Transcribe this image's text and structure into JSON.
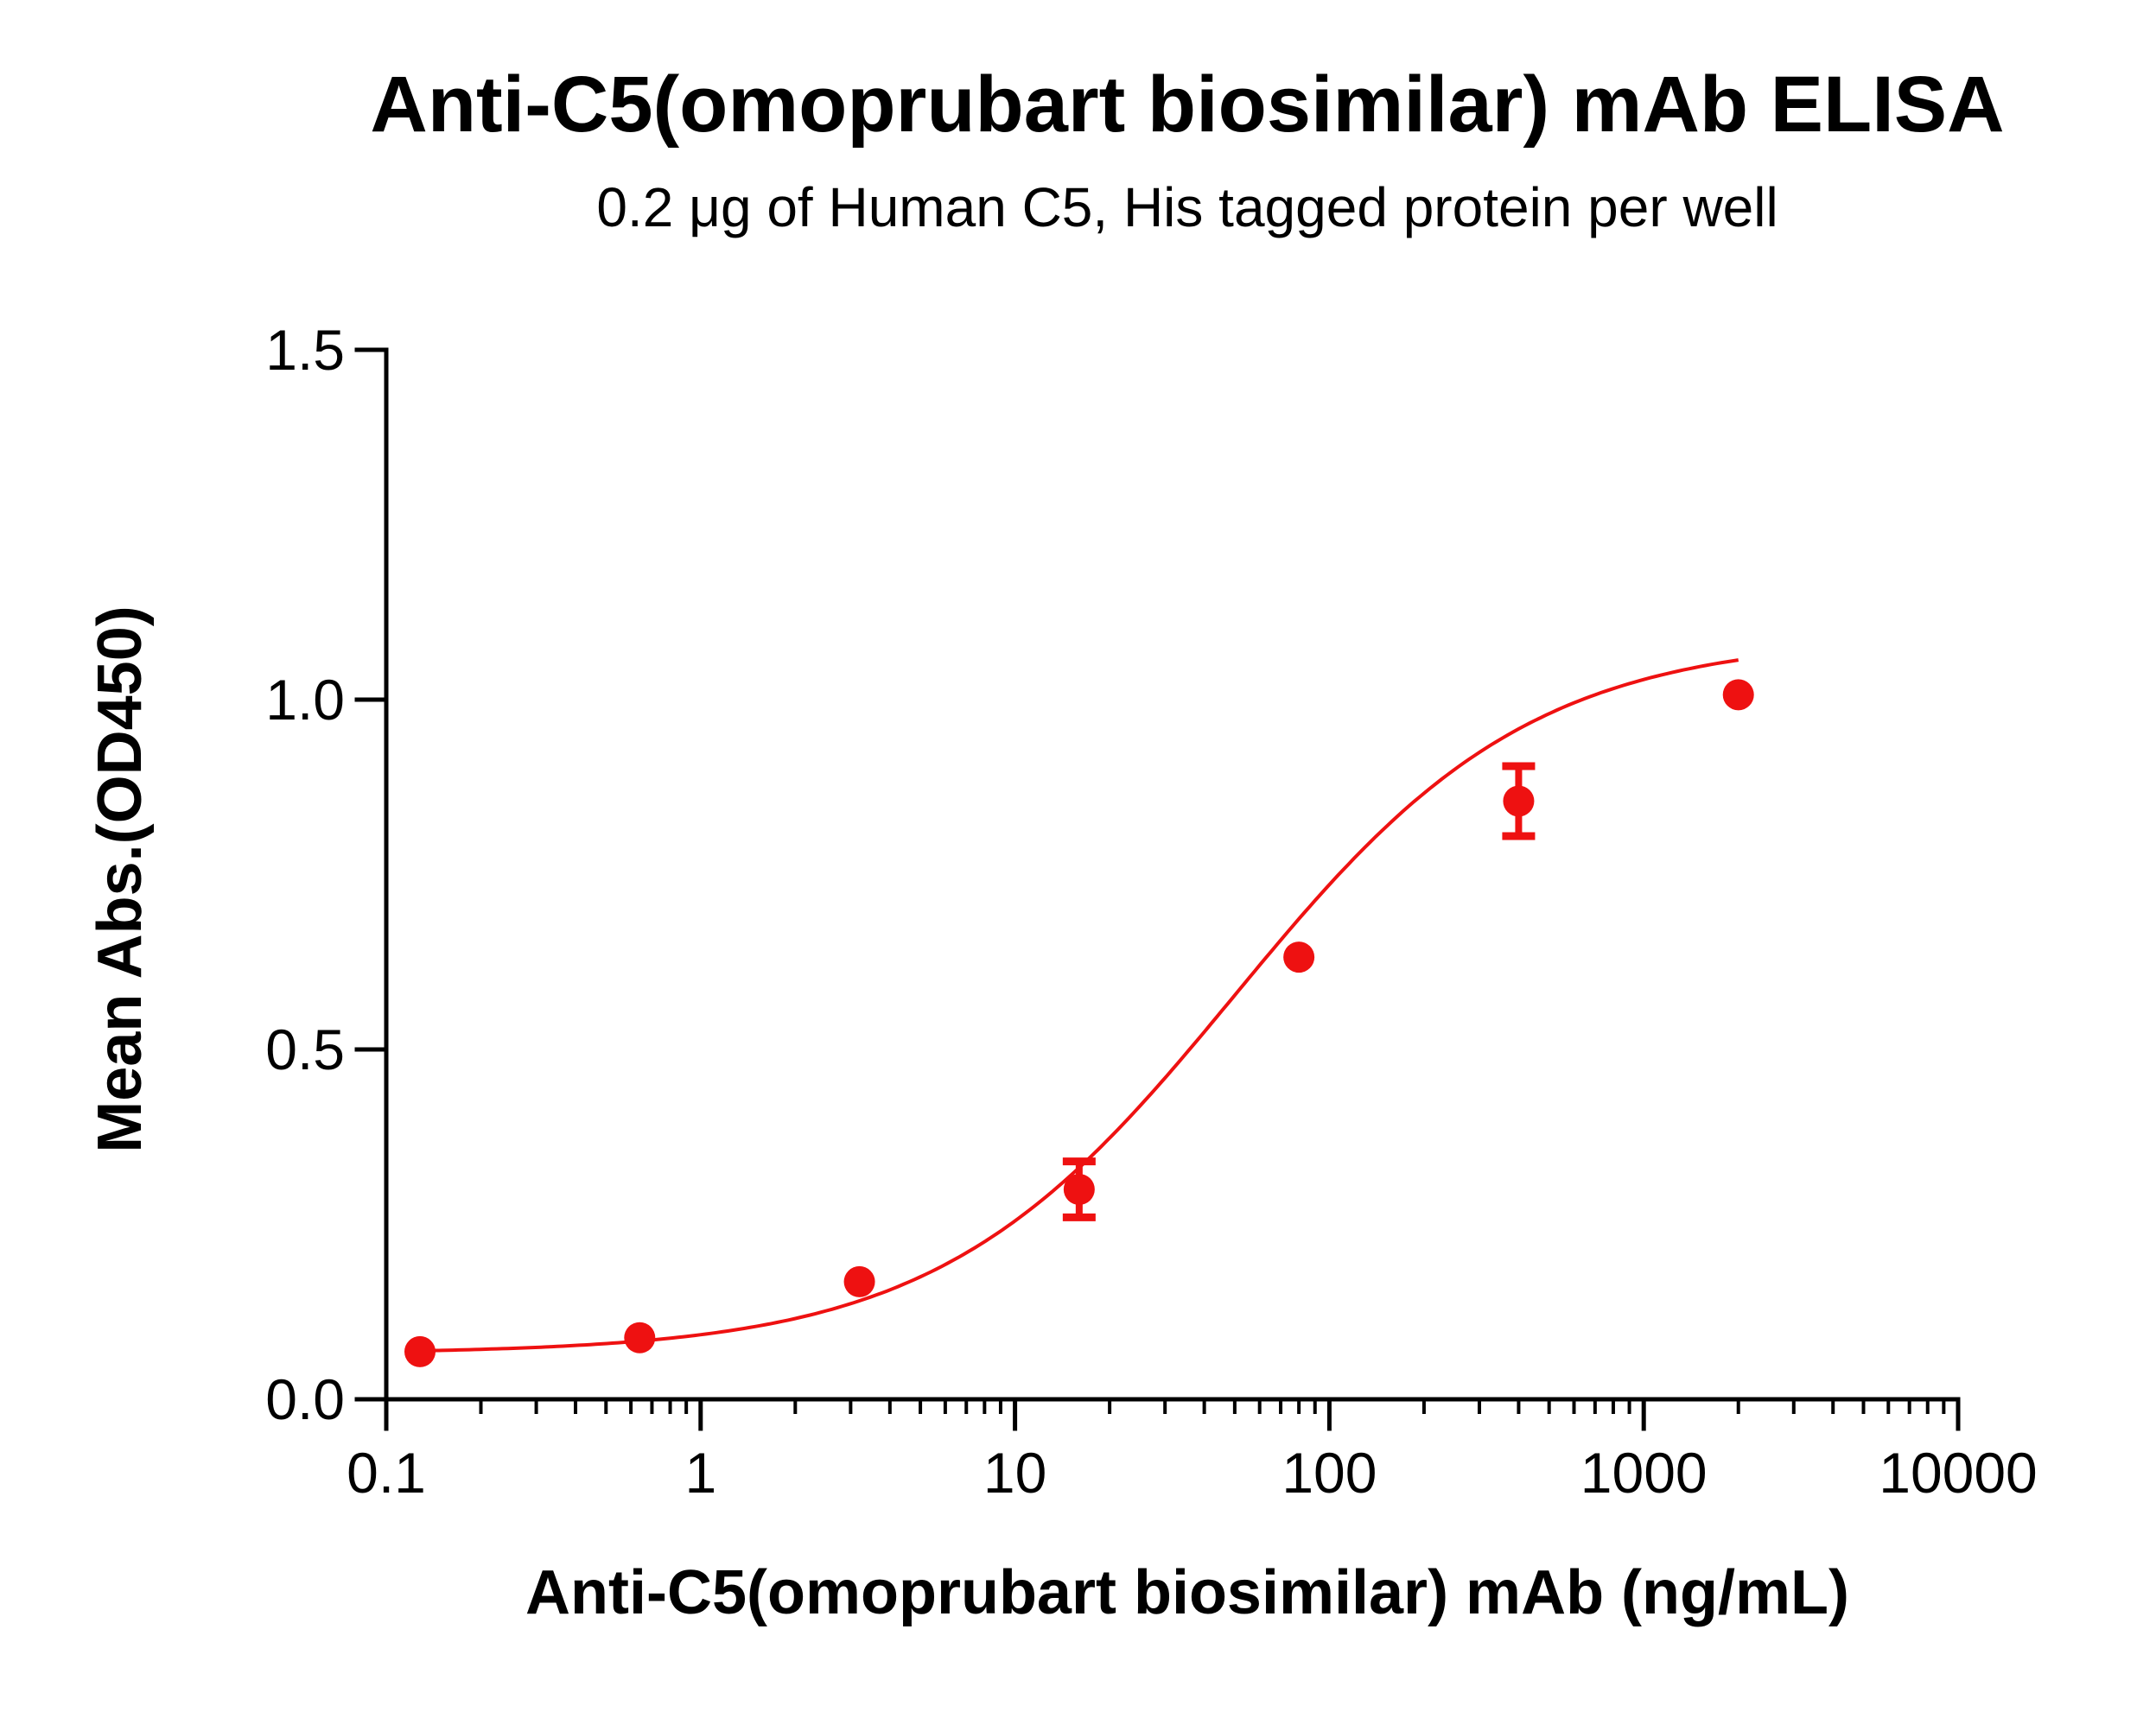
{
  "chart_data": {
    "type": "scatter",
    "title": "Anti-C5(omoprubart biosimilar) mAb ELISA",
    "subtitle": "0.2 μg of Human C5, His tagged protein per well",
    "xlabel": "Anti-C5(omoprubart biosimilar) mAb (ng/mL)",
    "ylabel": "Mean Abs.(OD450)",
    "x_scale": "log",
    "xlim": [
      0.1,
      10000
    ],
    "ylim": [
      0.0,
      1.5
    ],
    "x_ticks": [
      0.1,
      1,
      10,
      100,
      1000,
      10000
    ],
    "x_tick_labels": [
      "0.1",
      "1",
      "10",
      "100",
      "1000",
      "10000"
    ],
    "y_ticks": [
      0.0,
      0.5,
      1.0,
      1.5
    ],
    "y_tick_labels": [
      "0.0",
      "0.5",
      "1.0",
      "1.5"
    ],
    "grid": false,
    "legend": "none",
    "color": "#ee1111",
    "series": [
      {
        "points": [
          {
            "x": 0.128,
            "y": 0.068,
            "err": 0.0
          },
          {
            "x": 0.64,
            "y": 0.088,
            "err": 0.0
          },
          {
            "x": 3.2,
            "y": 0.168,
            "err": 0.0
          },
          {
            "x": 16,
            "y": 0.3,
            "err": 0.04
          },
          {
            "x": 80,
            "y": 0.632,
            "err": 0.0
          },
          {
            "x": 400,
            "y": 0.855,
            "err": 0.05
          },
          {
            "x": 2000,
            "y": 1.007,
            "err": 0.0
          }
        ],
        "fit": {
          "model": "4PL",
          "bottom": 0.065,
          "top": 1.09,
          "ec50": 50,
          "hill": 0.92
        }
      }
    ]
  }
}
